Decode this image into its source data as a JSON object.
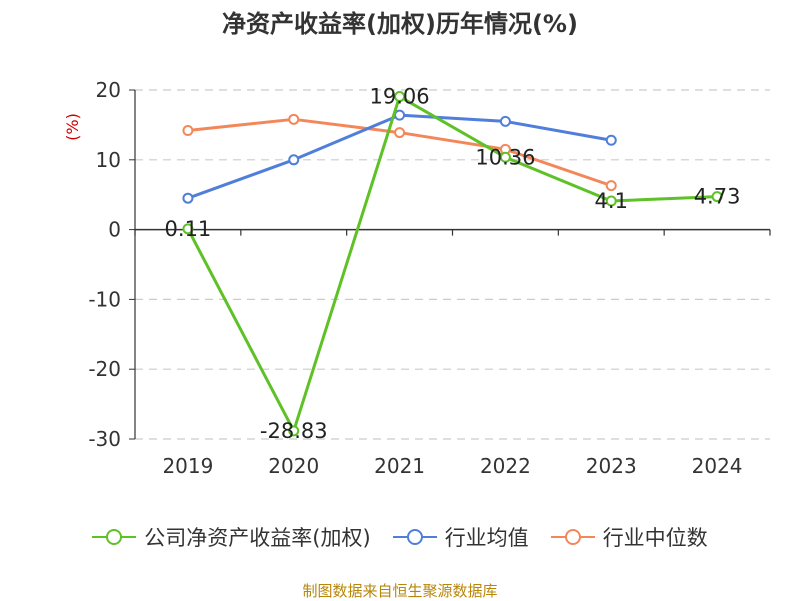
{
  "chart_data": {
    "type": "line",
    "title": "净资产收益率(加权)历年情况(%)",
    "ylabel": "(%)",
    "xlabel": "",
    "categories": [
      "2019",
      "2020",
      "2021",
      "2022",
      "2023",
      "2024"
    ],
    "ylim": [
      -30,
      20
    ],
    "yticks": [
      20,
      10,
      0,
      -10,
      -20,
      -30
    ],
    "series": [
      {
        "name": "公司净资产收益率(加权)",
        "color": "#5ec126",
        "values": [
          0.11,
          -28.83,
          19.06,
          10.36,
          4.1,
          4.73
        ],
        "data_labels": [
          "0.11",
          "-28.83",
          "19.06",
          "10.36",
          "4.1",
          "4.73"
        ]
      },
      {
        "name": "行业均值",
        "color": "#4f7fdb",
        "values": [
          4.5,
          10.0,
          16.4,
          15.5,
          12.8,
          null
        ]
      },
      {
        "name": "行业中位数",
        "color": "#f4875a",
        "values": [
          14.2,
          15.8,
          13.9,
          11.5,
          6.3,
          null
        ]
      }
    ]
  },
  "source": "制图数据来自恒生聚源数据库"
}
